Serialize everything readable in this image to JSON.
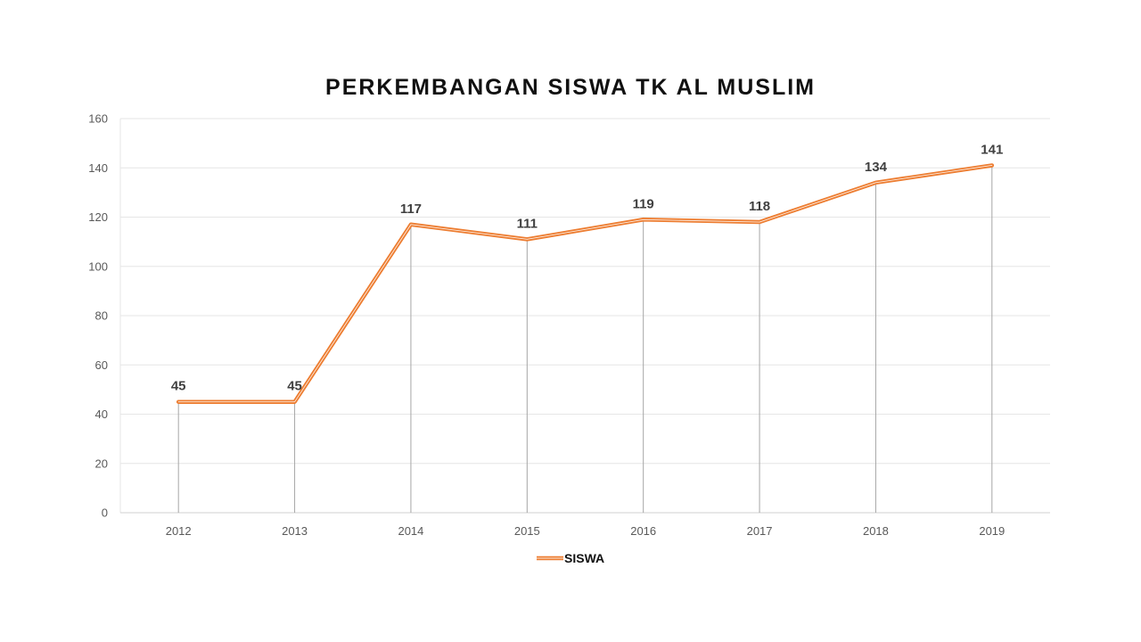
{
  "chart_data": {
    "type": "line",
    "title": "PERKEMBANGAN SISWA TK AL MUSLIM",
    "categories": [
      "2012",
      "2013",
      "2014",
      "2015",
      "2016",
      "2017",
      "2018",
      "2019"
    ],
    "series": [
      {
        "name": "SISWA",
        "values": [
          45,
          45,
          117,
          111,
          119,
          118,
          134,
          141
        ],
        "color": "#ED7D31"
      }
    ],
    "ylim": [
      0,
      160
    ],
    "yticks": [
      0,
      20,
      40,
      60,
      80,
      100,
      120,
      140,
      160
    ],
    "grid": true,
    "drop_lines": true,
    "data_labels": true,
    "legend": "bottom"
  }
}
